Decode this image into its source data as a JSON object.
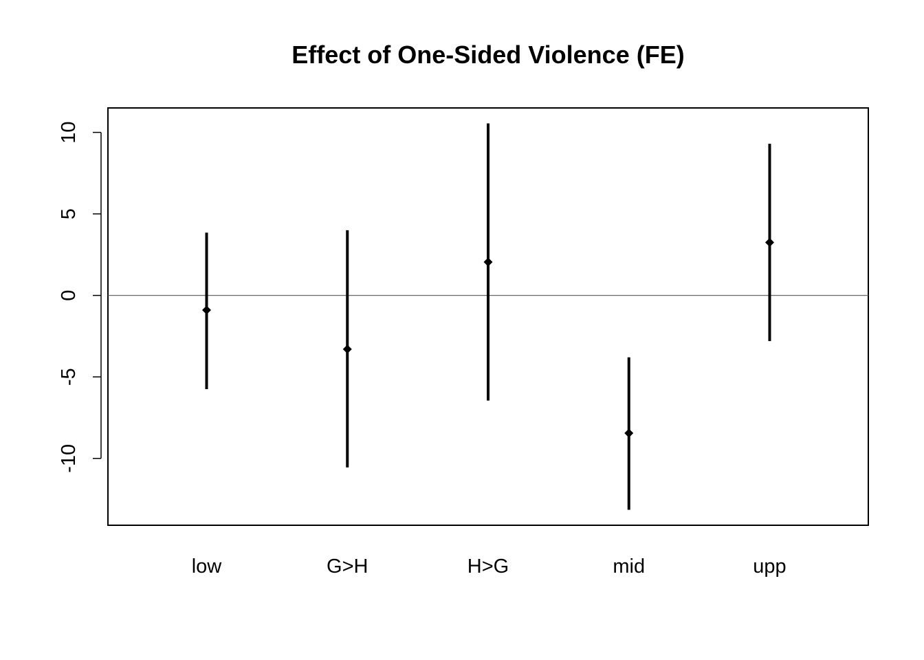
{
  "chart_data": {
    "type": "scatter",
    "title": "Effect of One-Sided Violence (FE)",
    "xlabel": "",
    "ylabel": "",
    "categories": [
      "low",
      "G>H",
      "H>G",
      "mid",
      "upp"
    ],
    "estimates": [
      -0.9,
      -3.3,
      2.05,
      -8.45,
      3.25
    ],
    "lower": [
      -5.75,
      -10.55,
      -6.45,
      -13.15,
      -2.8
    ],
    "upper": [
      3.85,
      4.0,
      10.55,
      -3.8,
      9.3
    ],
    "ylim": [
      -14.1,
      11.5
    ],
    "yticks": [
      -10,
      -5,
      0,
      5,
      10
    ],
    "yticklabels": [
      "-10",
      "-5",
      "0",
      "5",
      "10"
    ],
    "reference_line": 0,
    "grid": false,
    "legend": "none",
    "colors": {
      "marks": "#000000",
      "reference_line": "#555555",
      "background": "#ffffff"
    }
  }
}
